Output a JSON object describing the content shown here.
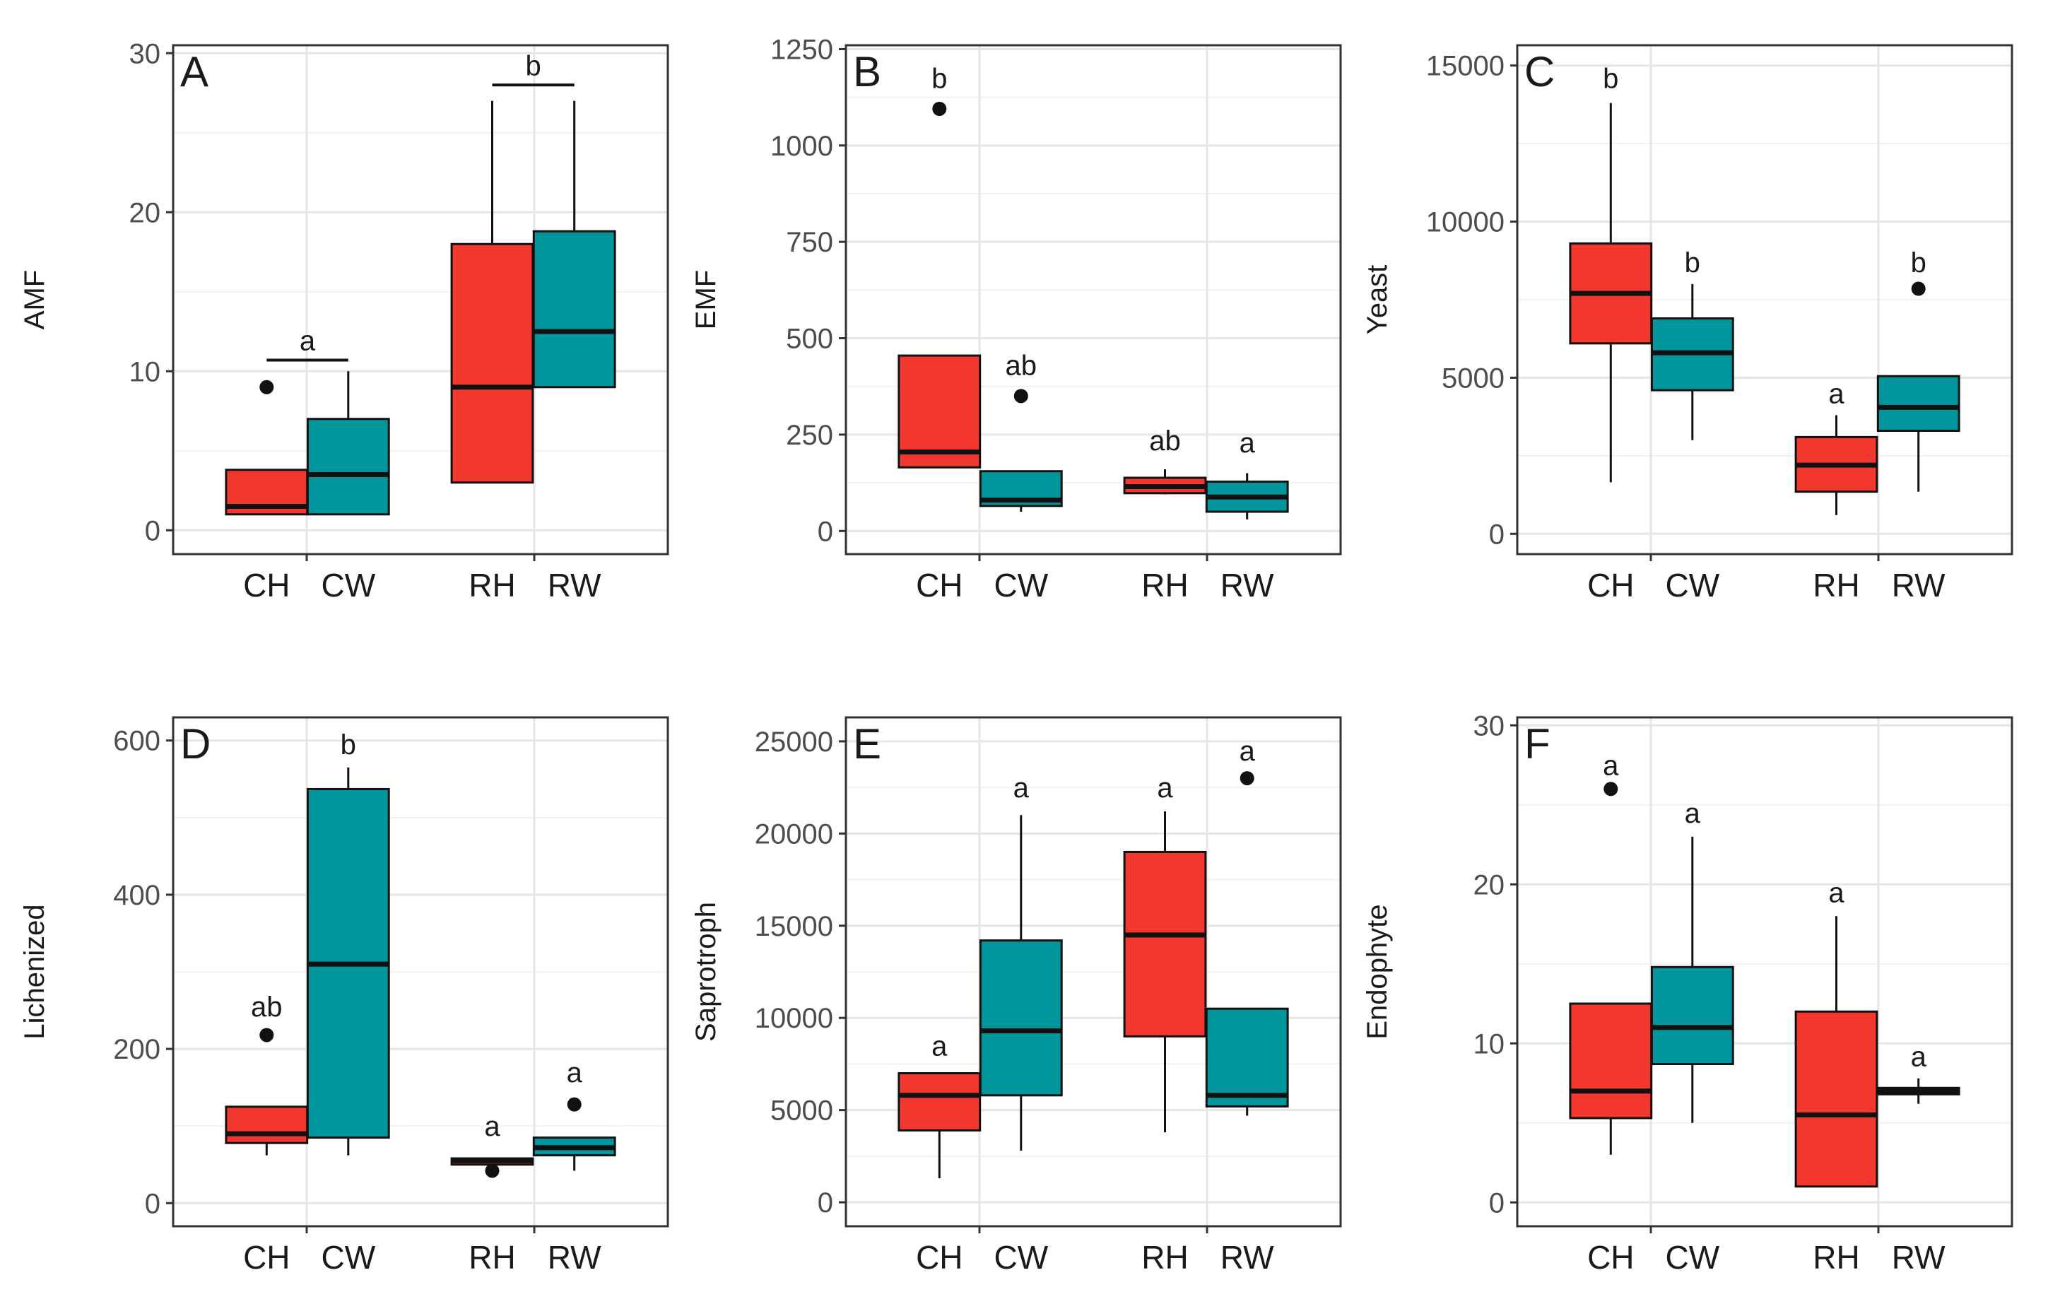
{
  "chart_data": [
    {
      "type": "box",
      "panel": "A",
      "ylabel": "AMF",
      "ylim": [
        -1.5,
        30.5
      ],
      "yticks": [
        0,
        10,
        20,
        30
      ],
      "categories": [
        "CH",
        "CW",
        "RH",
        "RW"
      ],
      "boxes": [
        {
          "cat": "CH",
          "group": "H",
          "min": 1,
          "q1": 1,
          "median": 1.5,
          "q3": 3.8,
          "max": 3.8,
          "outliers": [
            9
          ]
        },
        {
          "cat": "CW",
          "group": "W",
          "min": 1,
          "q1": 1,
          "median": 3.5,
          "q3": 7,
          "max": 10,
          "outliers": []
        },
        {
          "cat": "RH",
          "group": "H",
          "min": 3,
          "q1": 3,
          "median": 9,
          "q3": 18,
          "max": 27,
          "outliers": []
        },
        {
          "cat": "RW",
          "group": "W",
          "min": 9,
          "q1": 9,
          "median": 12.5,
          "q3": 18.8,
          "max": 27,
          "outliers": []
        }
      ],
      "annotations": [
        {
          "text": "a",
          "from": "CH",
          "to": "CW",
          "y": 10.7,
          "bracket": true
        },
        {
          "text": "b",
          "from": "RH",
          "to": "RW",
          "y": 28,
          "bracket": true
        }
      ]
    },
    {
      "type": "box",
      "panel": "B",
      "ylabel": "EMF",
      "ylim": [
        -60,
        1260
      ],
      "yticks": [
        0,
        250,
        500,
        750,
        1000,
        1250
      ],
      "categories": [
        "CH",
        "CW",
        "RH",
        "RW"
      ],
      "boxes": [
        {
          "cat": "CH",
          "group": "H",
          "min": 165,
          "q1": 165,
          "median": 205,
          "q3": 455,
          "max": 455,
          "outliers": [
            1095
          ]
        },
        {
          "cat": "CW",
          "group": "W",
          "min": 50,
          "q1": 65,
          "median": 80,
          "q3": 155,
          "max": 155,
          "outliers": [
            350
          ]
        },
        {
          "cat": "RH",
          "group": "H",
          "min": 95,
          "q1": 98,
          "median": 115,
          "q3": 138,
          "max": 160,
          "outliers": []
        },
        {
          "cat": "RW",
          "group": "W",
          "min": 30,
          "q1": 50,
          "median": 88,
          "q3": 128,
          "max": 150,
          "outliers": []
        }
      ],
      "annotations": [
        {
          "text": "b",
          "cat": "CH",
          "y": 1175
        },
        {
          "text": "ab",
          "cat": "CW",
          "y": 430
        },
        {
          "text": "ab",
          "cat": "RH",
          "y": 235
        },
        {
          "text": "a",
          "cat": "RW",
          "y": 230
        }
      ]
    },
    {
      "type": "box",
      "panel": "C",
      "ylabel": "Yeast",
      "ylim": [
        -650,
        15650
      ],
      "yticks": [
        0,
        5000,
        10000,
        15000
      ],
      "categories": [
        "CH",
        "CW",
        "RH",
        "RW"
      ],
      "boxes": [
        {
          "cat": "CH",
          "group": "H",
          "min": 1650,
          "q1": 6100,
          "median": 7700,
          "q3": 9300,
          "max": 13800,
          "outliers": []
        },
        {
          "cat": "CW",
          "group": "W",
          "min": 3000,
          "q1": 4600,
          "median": 5800,
          "q3": 6900,
          "max": 8000,
          "outliers": []
        },
        {
          "cat": "RH",
          "group": "H",
          "min": 600,
          "q1": 1350,
          "median": 2200,
          "q3": 3100,
          "max": 3800,
          "outliers": []
        },
        {
          "cat": "RW",
          "group": "W",
          "min": 1350,
          "q1": 3300,
          "median": 4050,
          "q3": 5050,
          "max": 5050,
          "outliers": [
            7850
          ]
        }
      ],
      "annotations": [
        {
          "text": "b",
          "cat": "CH",
          "y": 14600
        },
        {
          "text": "b",
          "cat": "CW",
          "y": 8700
        },
        {
          "text": "a",
          "cat": "RH",
          "y": 4500
        },
        {
          "text": "b",
          "cat": "RW",
          "y": 8700
        }
      ]
    },
    {
      "type": "box",
      "panel": "D",
      "ylabel": "Lichenized",
      "ylim": [
        -30,
        630
      ],
      "yticks": [
        0,
        200,
        400,
        600
      ],
      "categories": [
        "CH",
        "CW",
        "RH",
        "RW"
      ],
      "boxes": [
        {
          "cat": "CH",
          "group": "H",
          "min": 62,
          "q1": 78,
          "median": 90,
          "q3": 125,
          "max": 125,
          "outliers": [
            218
          ]
        },
        {
          "cat": "CW",
          "group": "W",
          "min": 62,
          "q1": 85,
          "median": 310,
          "q3": 537,
          "max": 565,
          "outliers": []
        },
        {
          "cat": "RH",
          "group": "H",
          "min": 50,
          "q1": 50,
          "median": 55,
          "q3": 58,
          "max": 58,
          "outliers": [
            42
          ]
        },
        {
          "cat": "RW",
          "group": "W",
          "min": 42,
          "q1": 62,
          "median": 72,
          "q3": 85,
          "max": 85,
          "outliers": [
            128
          ]
        }
      ],
      "annotations": [
        {
          "text": "ab",
          "cat": "CH",
          "y": 255
        },
        {
          "text": "b",
          "cat": "CW",
          "y": 595
        },
        {
          "text": "a",
          "cat": "RH",
          "y": 100
        },
        {
          "text": "a",
          "cat": "RW",
          "y": 170
        }
      ]
    },
    {
      "type": "box",
      "panel": "E",
      "ylabel": "Saprotroph",
      "ylim": [
        -1300,
        26300
      ],
      "yticks": [
        0,
        5000,
        10000,
        15000,
        20000,
        25000
      ],
      "categories": [
        "CH",
        "CW",
        "RH",
        "RW"
      ],
      "boxes": [
        {
          "cat": "CH",
          "group": "H",
          "min": 1300,
          "q1": 3900,
          "median": 5800,
          "q3": 7000,
          "max": 7000,
          "outliers": []
        },
        {
          "cat": "CW",
          "group": "W",
          "min": 2800,
          "q1": 5800,
          "median": 9300,
          "q3": 14200,
          "max": 21000,
          "outliers": []
        },
        {
          "cat": "RH",
          "group": "H",
          "min": 3800,
          "q1": 9000,
          "median": 14500,
          "q3": 19000,
          "max": 21200,
          "outliers": []
        },
        {
          "cat": "RW",
          "group": "W",
          "min": 4700,
          "q1": 5200,
          "median": 5800,
          "q3": 10500,
          "max": 10500,
          "outliers": [
            23000
          ]
        }
      ],
      "annotations": [
        {
          "text": "a",
          "cat": "CH",
          "y": 8500
        },
        {
          "text": "a",
          "cat": "CW",
          "y": 22500
        },
        {
          "text": "a",
          "cat": "RH",
          "y": 22500
        },
        {
          "text": "a",
          "cat": "RW",
          "y": 24500
        }
      ]
    },
    {
      "type": "box",
      "panel": "F",
      "ylabel": "Endophyte",
      "ylim": [
        -1.5,
        30.5
      ],
      "yticks": [
        0,
        10,
        20,
        30
      ],
      "categories": [
        "CH",
        "CW",
        "RH",
        "RW"
      ],
      "boxes": [
        {
          "cat": "CH",
          "group": "H",
          "min": 3,
          "q1": 5.3,
          "median": 7,
          "q3": 12.5,
          "max": 12.5,
          "outliers": [
            26
          ]
        },
        {
          "cat": "CW",
          "group": "W",
          "min": 5,
          "q1": 8.7,
          "median": 11,
          "q3": 14.8,
          "max": 23,
          "outliers": []
        },
        {
          "cat": "RH",
          "group": "H",
          "min": 1,
          "q1": 1,
          "median": 5.5,
          "q3": 12,
          "max": 18,
          "outliers": []
        },
        {
          "cat": "RW",
          "group": "W",
          "min": 6.2,
          "q1": 6.8,
          "median": 7.0,
          "q3": 7.2,
          "max": 7.8,
          "outliers": []
        }
      ],
      "annotations": [
        {
          "text": "a",
          "cat": "CH",
          "y": 27.5
        },
        {
          "text": "a",
          "cat": "CW",
          "y": 24.5
        },
        {
          "text": "a",
          "cat": "RH",
          "y": 19.5
        },
        {
          "text": "a",
          "cat": "RW",
          "y": 9.2
        }
      ]
    }
  ],
  "colors": {
    "H": "#f2372f",
    "W": "#00969b",
    "grid": "#e6e6e6",
    "frame": "#333333",
    "stroke": "#111111"
  }
}
